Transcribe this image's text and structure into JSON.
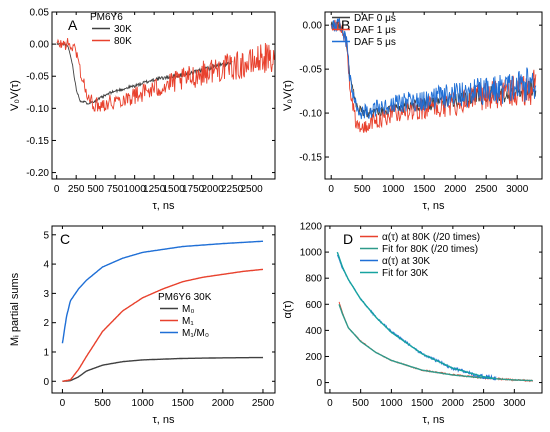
{
  "chart_data": [
    {
      "panel_label": "A",
      "type": "line",
      "xlabel": "τ, ns",
      "ylabel": "V₀V(τ)",
      "xlim": [
        -60,
        2800
      ],
      "ylim": [
        -0.21,
        0.05
      ],
      "xticks": [
        0,
        250,
        500,
        750,
        1000,
        1250,
        1500,
        1750,
        2000,
        2250,
        2500
      ],
      "yticks": [
        0.05,
        0.0,
        -0.05,
        -0.1,
        -0.15,
        -0.2
      ],
      "ytick_labels": [
        "0.05",
        "0.00",
        "-0.05",
        "-0.10",
        "-0.15",
        "-0.20"
      ],
      "legend_title": "PM6Y6",
      "legend_position": "top-left",
      "series": [
        {
          "name": "30K",
          "color": "#404040",
          "noise": 0.004,
          "x": [
            0,
            100,
            150,
            200,
            250,
            300,
            400,
            500,
            700,
            1000,
            1250,
            1500,
            1750,
            2000,
            2250
          ],
          "y": [
            0.0,
            0.0,
            -0.005,
            -0.03,
            -0.07,
            -0.088,
            -0.092,
            -0.088,
            -0.075,
            -0.065,
            -0.055,
            -0.05,
            -0.045,
            -0.035,
            -0.03
          ]
        },
        {
          "name": "80K",
          "color": "#e8412d",
          "noise": 0.025,
          "x": [
            0,
            150,
            250,
            300,
            400,
            500,
            700,
            1000,
            1250,
            1500,
            1750,
            2000,
            2250,
            2500,
            2650,
            2800
          ],
          "y": [
            0.0,
            0.0,
            -0.01,
            -0.04,
            -0.085,
            -0.095,
            -0.09,
            -0.08,
            -0.07,
            -0.06,
            -0.05,
            -0.04,
            -0.035,
            -0.03,
            -0.02,
            -0.03
          ]
        }
      ]
    },
    {
      "panel_label": "B",
      "type": "line",
      "xlabel": "τ, ns",
      "ylabel": "V₀V(τ)",
      "xlim": [
        -100,
        3400
      ],
      "ylim": [
        -0.175,
        0.015
      ],
      "xticks": [
        0,
        500,
        1000,
        1500,
        2000,
        2500,
        3000
      ],
      "yticks": [
        0.0,
        -0.05,
        -0.1,
        -0.15
      ],
      "ytick_labels": [
        "0.00",
        "-0.05",
        "-0.10",
        "-0.15"
      ],
      "legend_position": "top-left",
      "series": [
        {
          "name": "DAF 0 μs",
          "color": "#404040",
          "noise": 0.012,
          "x": [
            0,
            150,
            250,
            300,
            400,
            500,
            700,
            1000,
            1500,
            2000,
            2500,
            3000,
            3300
          ],
          "y": [
            0.0,
            0.0,
            -0.02,
            -0.06,
            -0.09,
            -0.1,
            -0.1,
            -0.095,
            -0.09,
            -0.085,
            -0.08,
            -0.075,
            -0.07
          ]
        },
        {
          "name": "DAF 1 μs",
          "color": "#e8412d",
          "noise": 0.02,
          "x": [
            0,
            150,
            250,
            300,
            400,
            500,
            700,
            1000,
            1500,
            2000,
            2500,
            3000,
            3300
          ],
          "y": [
            0.0,
            0.0,
            -0.02,
            -0.07,
            -0.11,
            -0.115,
            -0.11,
            -0.1,
            -0.095,
            -0.09,
            -0.08,
            -0.075,
            -0.07
          ]
        },
        {
          "name": "DAF 5 μs",
          "color": "#1f6fd6",
          "noise": 0.02,
          "x": [
            0,
            150,
            250,
            300,
            400,
            500,
            700,
            1000,
            1500,
            2000,
            2500,
            3000,
            3300
          ],
          "y": [
            0.0,
            0.0,
            -0.02,
            -0.06,
            -0.09,
            -0.1,
            -0.095,
            -0.09,
            -0.085,
            -0.08,
            -0.075,
            -0.07,
            -0.065
          ]
        }
      ]
    },
    {
      "panel_label": "C",
      "type": "line",
      "xlabel": "τ, ns",
      "ylabel": "Mᵢ partial sums",
      "xlim": [
        -130,
        2650
      ],
      "ylim": [
        -0.4,
        5.3
      ],
      "xticks": [
        0,
        500,
        1000,
        1500,
        2000,
        2500
      ],
      "yticks": [
        0,
        1,
        2,
        3,
        4,
        5
      ],
      "legend_title": "PM6Y6 30K",
      "legend_position": "center-right",
      "series": [
        {
          "name": "M₀",
          "color": "#404040",
          "noise": 0,
          "x": [
            0,
            100,
            200,
            300,
            500,
            750,
            1000,
            1500,
            2000,
            2500
          ],
          "y": [
            0.0,
            0.02,
            0.15,
            0.35,
            0.55,
            0.67,
            0.73,
            0.78,
            0.8,
            0.81
          ]
        },
        {
          "name": "M₁",
          "color": "#e8412d",
          "noise": 0,
          "x": [
            0,
            100,
            200,
            300,
            500,
            750,
            1000,
            1250,
            1500,
            1750,
            2000,
            2250,
            2500
          ],
          "y": [
            0.0,
            0.05,
            0.4,
            0.85,
            1.7,
            2.4,
            2.85,
            3.15,
            3.4,
            3.55,
            3.65,
            3.75,
            3.82
          ]
        },
        {
          "name": "M₁/M₀",
          "color": "#1f6fd6",
          "noise": 0,
          "x": [
            0,
            50,
            100,
            200,
            300,
            500,
            750,
            1000,
            1500,
            2000,
            2500
          ],
          "y": [
            1.3,
            2.2,
            2.75,
            3.15,
            3.45,
            3.9,
            4.2,
            4.4,
            4.6,
            4.7,
            4.78
          ]
        }
      ]
    },
    {
      "panel_label": "D",
      "type": "line",
      "xlabel": "τ, ns",
      "ylabel": "α(τ)",
      "xlim": [
        -80,
        3450
      ],
      "ylim": [
        -80,
        1200
      ],
      "xticks": [
        0,
        500,
        1000,
        1500,
        2000,
        2500,
        3000
      ],
      "yticks": [
        0,
        200,
        400,
        600,
        800,
        1000,
        1200
      ],
      "legend_position": "top-right",
      "series": [
        {
          "name": "α(τ) at 80K (/20 times)",
          "color": "#e8412d",
          "noise": 8,
          "x": [
            150,
            200,
            300,
            500,
            750,
            1000,
            1500,
            2000,
            2500,
            3000,
            3300
          ],
          "y": [
            620,
            540,
            420,
            320,
            230,
            170,
            95,
            60,
            35,
            20,
            15
          ]
        },
        {
          "name": "Fit for 80K (/20 times)",
          "color": "#2e9a8a",
          "noise": 0,
          "x": [
            150,
            200,
            300,
            500,
            750,
            1000,
            1500,
            2000,
            2500,
            3000,
            3300
          ],
          "y": [
            600,
            530,
            420,
            315,
            230,
            170,
            95,
            58,
            35,
            20,
            15
          ]
        },
        {
          "name": "α(τ) at 30K",
          "color": "#1f6fd6",
          "noise": 15,
          "x": [
            120,
            200,
            300,
            500,
            750,
            1000,
            1500,
            2000,
            2500,
            2700
          ],
          "y": [
            980,
            880,
            790,
            640,
            500,
            390,
            220,
            110,
            45,
            35
          ]
        },
        {
          "name": "Fit for 30K",
          "color": "#17a3a0",
          "noise": 0,
          "x": [
            120,
            200,
            300,
            500,
            750,
            1000,
            1500,
            2000,
            2500,
            2700
          ],
          "y": [
            1000,
            890,
            790,
            640,
            500,
            385,
            220,
            110,
            45,
            30
          ]
        }
      ]
    }
  ]
}
